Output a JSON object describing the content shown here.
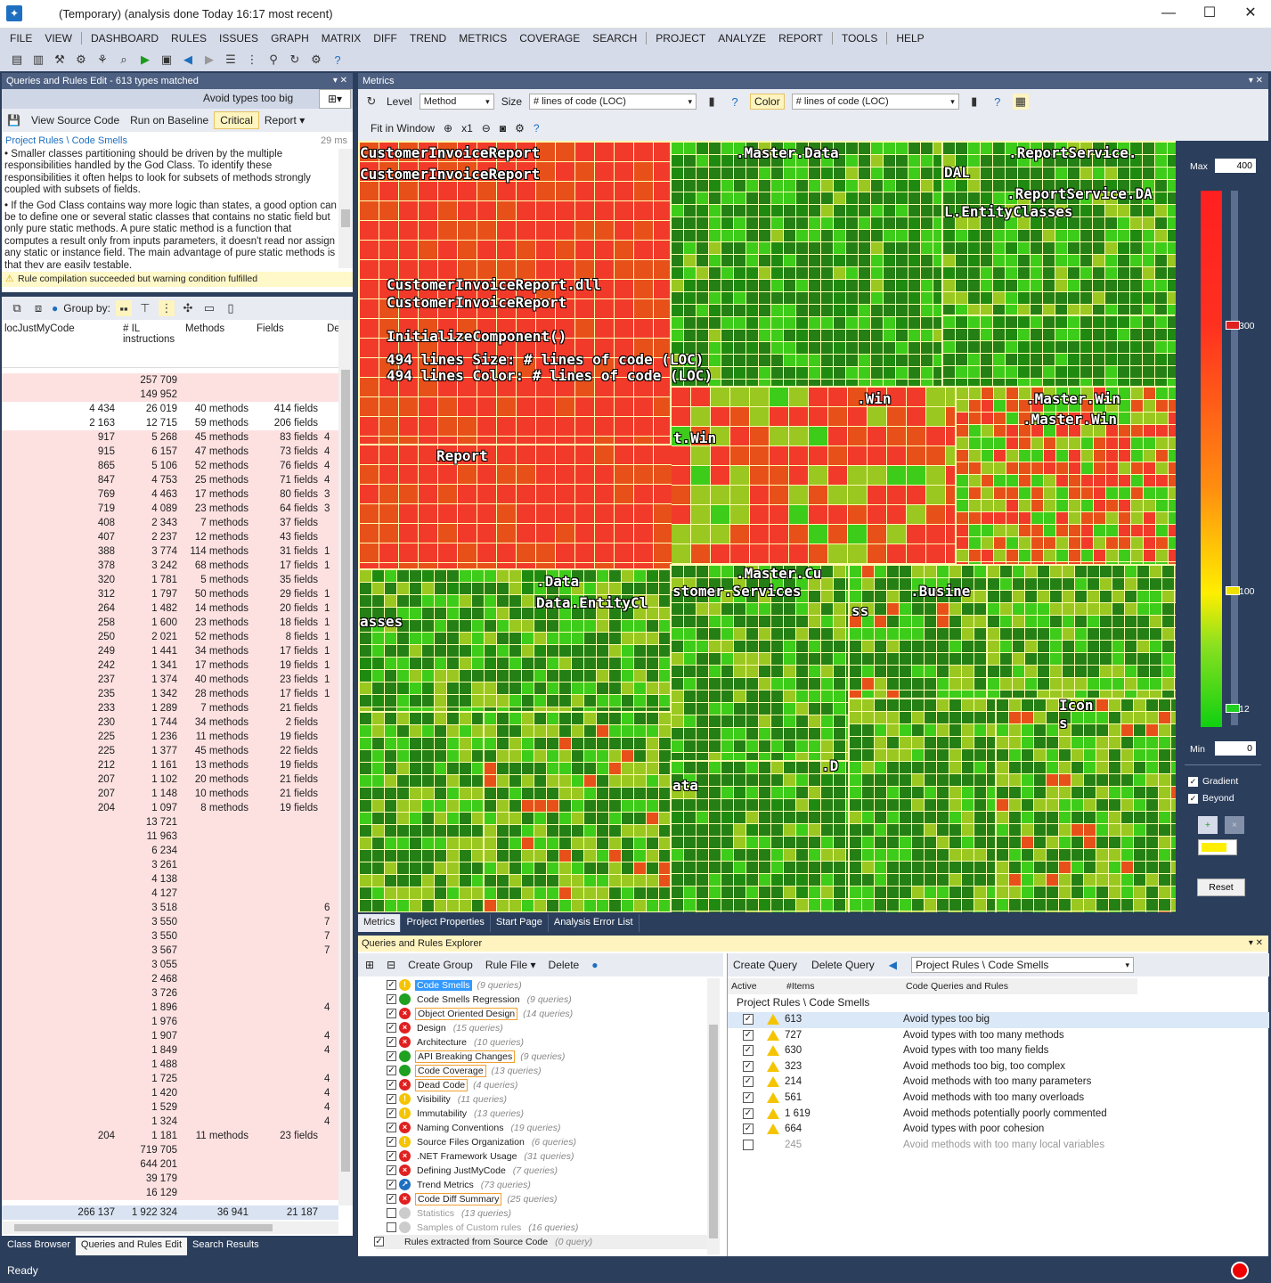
{
  "window": {
    "title": "(Temporary)  (analysis done Today 16:17 most recent)",
    "min": "—",
    "max": "☐",
    "close": "✕"
  },
  "menu": [
    "FILE",
    "VIEW",
    "DASHBOARD",
    "RULES",
    "ISSUES",
    "GRAPH",
    "MATRIX",
    "DIFF",
    "TREND",
    "METRICS",
    "COVERAGE",
    "SEARCH",
    "PROJECT",
    "ANALYZE",
    "REPORT",
    "TOOLS",
    "HELP"
  ],
  "qre": {
    "header": "Queries and Rules Edit  - 613 types matched",
    "rule_title": "Avoid types too big",
    "save": "💾",
    "view_source": "View Source Code",
    "run_baseline": "Run on Baseline",
    "critical": "Critical",
    "report": "Report ▾",
    "path": "Project Rules \\ Code Smells",
    "ms": "29 ms",
    "desc1": "• Smaller classes partitioning should be driven by the multiple responsibilities handled by the God Class. To identify these responsibilities it often helps to look for subsets of methods strongly coupled with subsets of fields.",
    "desc2": "• If the God Class contains way more logic than states, a good option can be to define one or several static classes that contains no static field but only pure static methods. A pure static method is a function that computes a result only from inputs parameters, it doesn't read nor assign any static or instance field. The main advantage of pure static methods is that they are easily testable.",
    "warn": "Rule compilation succeeded but warning condition fulfilled"
  },
  "grid": {
    "group_by": "Group by:",
    "cols": [
      "locJustMyCode",
      "# IL instructions",
      "Methods",
      "Fields",
      "De"
    ],
    "rows": [
      [
        "",
        "257 709",
        "",
        "",
        ""
      ],
      [
        "",
        "149 952",
        "",
        "",
        ""
      ],
      [
        "4 434",
        "26 019",
        "40 methods",
        "414 fields",
        ""
      ],
      [
        "2 163",
        "12 715",
        "59 methods",
        "206 fields",
        ""
      ],
      [
        "917",
        "5 268",
        "45 methods",
        "83 fields",
        "4"
      ],
      [
        "915",
        "6 157",
        "47 methods",
        "73 fields",
        "4"
      ],
      [
        "865",
        "5 106",
        "52 methods",
        "76 fields",
        "4"
      ],
      [
        "847",
        "4 753",
        "25 methods",
        "71 fields",
        "4"
      ],
      [
        "769",
        "4 463",
        "17 methods",
        "80 fields",
        "3"
      ],
      [
        "719",
        "4 089",
        "23 methods",
        "64 fields",
        "3"
      ],
      [
        "408",
        "2 343",
        "7 methods",
        "37 fields",
        ""
      ],
      [
        "407",
        "2 237",
        "12 methods",
        "43 fields",
        ""
      ],
      [
        "388",
        "3 774",
        "114 methods",
        "31 fields",
        "1"
      ],
      [
        "378",
        "3 242",
        "68 methods",
        "17 fields",
        "1"
      ],
      [
        "320",
        "1 781",
        "5 methods",
        "35 fields",
        ""
      ],
      [
        "312",
        "1 797",
        "50 methods",
        "29 fields",
        "1"
      ],
      [
        "264",
        "1 482",
        "14 methods",
        "20 fields",
        "1"
      ],
      [
        "258",
        "1 600",
        "23 methods",
        "18 fields",
        "1"
      ],
      [
        "250",
        "2 021",
        "52 methods",
        "8 fields",
        "1"
      ],
      [
        "249",
        "1 441",
        "34 methods",
        "17 fields",
        "1"
      ],
      [
        "242",
        "1 341",
        "17 methods",
        "19 fields",
        "1"
      ],
      [
        "237",
        "1 374",
        "40 methods",
        "23 fields",
        "1"
      ],
      [
        "235",
        "1 342",
        "28 methods",
        "17 fields",
        "1"
      ],
      [
        "233",
        "1 289",
        "7 methods",
        "21 fields",
        ""
      ],
      [
        "230",
        "1 744",
        "34 methods",
        "2 fields",
        ""
      ],
      [
        "225",
        "1 236",
        "11 methods",
        "19 fields",
        ""
      ],
      [
        "225",
        "1 377",
        "45 methods",
        "22 fields",
        ""
      ],
      [
        "212",
        "1 161",
        "13 methods",
        "19 fields",
        ""
      ],
      [
        "207",
        "1 102",
        "20 methods",
        "21 fields",
        ""
      ],
      [
        "207",
        "1 148",
        "10 methods",
        "21 fields",
        ""
      ],
      [
        "204",
        "1 097",
        "8 methods",
        "19 fields",
        ""
      ],
      [
        "",
        "13 721",
        "",
        "",
        ""
      ],
      [
        "",
        "11 963",
        "",
        "",
        ""
      ],
      [
        "",
        "6 234",
        "",
        "",
        ""
      ],
      [
        "",
        "3 261",
        "",
        "",
        ""
      ],
      [
        "",
        "4 138",
        "",
        "",
        ""
      ],
      [
        "",
        "4 127",
        "",
        "",
        ""
      ],
      [
        "",
        "3 518",
        "",
        "",
        "6"
      ],
      [
        "",
        "3 550",
        "",
        "",
        "7"
      ],
      [
        "",
        "3 550",
        "",
        "",
        "7"
      ],
      [
        "",
        "3 567",
        "",
        "",
        "7"
      ],
      [
        "",
        "3 055",
        "",
        "",
        ""
      ],
      [
        "",
        "2 468",
        "",
        "",
        ""
      ],
      [
        "",
        "3 726",
        "",
        "",
        ""
      ],
      [
        "",
        "1 896",
        "",
        "",
        "4"
      ],
      [
        "",
        "1 976",
        "",
        "",
        ""
      ],
      [
        "",
        "1 907",
        "",
        "",
        "4"
      ],
      [
        "",
        "1 849",
        "",
        "",
        "4"
      ],
      [
        "",
        "1 488",
        "",
        "",
        ""
      ],
      [
        "",
        "1 725",
        "",
        "",
        "4"
      ],
      [
        "",
        "1 420",
        "",
        "",
        "4"
      ],
      [
        "",
        "1 529",
        "",
        "",
        "4"
      ],
      [
        "",
        "1 324",
        "",
        "",
        "4"
      ],
      [
        "204",
        "1 181",
        "11 methods",
        "23 fields",
        ""
      ],
      [
        "",
        "719 705",
        "",
        "",
        ""
      ],
      [
        "",
        "644 201",
        "",
        "",
        ""
      ],
      [
        "",
        "39 179",
        "",
        "",
        ""
      ],
      [
        "",
        "16 129",
        "",
        "",
        ""
      ]
    ],
    "totals": [
      "266 137",
      "1 922 324",
      "36 941",
      "21 187"
    ]
  },
  "bottom_tabs": [
    "Class Browser",
    "Queries and Rules Edit",
    "Search Results"
  ],
  "metrics": {
    "header": "Metrics",
    "level_label": "Level",
    "level": "Method",
    "size_label": "Size",
    "size_metric": "# lines of code (LOC)",
    "color_label": "Color",
    "color_metric": "# lines of code (LOC)",
    "fit": "Fit in Window",
    "zoom": "x1"
  },
  "treemap_labels": {
    "a": "CustomerInvoiceReport",
    "b": "CustomerInvoiceReport",
    "c": "CustomerInvoiceReport.dll",
    "d": "CustomerInvoiceReport",
    "e": "InitializeComponent()",
    "f": "494 lines   Size: # lines of code (LOC)",
    "g": "494 lines   Color: # lines of code (LOC)",
    "h": ".Master.Data",
    "i": ".ReportService.",
    "j": "DAL",
    "k": ".ReportService.DA",
    "l": "L.EntityClasses",
    "m": ".Win",
    "n": ".Master.Win",
    "o": ".Master.Win",
    "p": "t.Win",
    "q": "Report",
    "r": ".Data",
    "s": "Data.EntityCl",
    "t": "asses",
    "u": ".Master.Cu",
    "v": "stomer.Services",
    "w": ".Busine",
    "x": "ss",
    "y": "Icon",
    "z": "s",
    "aa": ".D",
    "ab": "ata"
  },
  "legend": {
    "max_label": "Max",
    "max": "400",
    "min_label": "Min",
    "min": "0",
    "t300": "300",
    "t100": "100",
    "t12": "12",
    "gradient": "Gradient",
    "beyond": "Beyond",
    "reset": "Reset"
  },
  "metrics_tabs": [
    "Metrics",
    "Project Properties",
    "Start Page",
    "Analysis Error List"
  ],
  "explorer": {
    "header": "Queries and Rules Explorer",
    "create_group": "Create Group",
    "rule_file": "Rule File ▾",
    "delete": "Delete",
    "create_query": "Create Query",
    "delete_query": "Delete Query",
    "path": "Project Rules \\ Code Smells",
    "groups": [
      {
        "name": "Code Smells",
        "count": "(9 queries)",
        "icon": "warn",
        "style": "sel"
      },
      {
        "name": "Code Smells Regression",
        "count": "(9 queries)",
        "icon": "ok",
        "style": ""
      },
      {
        "name": "Object Oriented Design",
        "count": "(14 queries)",
        "icon": "err",
        "style": "boxed"
      },
      {
        "name": "Design",
        "count": "(15 queries)",
        "icon": "err",
        "style": ""
      },
      {
        "name": "Architecture",
        "count": "(10 queries)",
        "icon": "err",
        "style": ""
      },
      {
        "name": "API Breaking Changes",
        "count": "(9 queries)",
        "icon": "ok",
        "style": "boxed"
      },
      {
        "name": "Code Coverage",
        "count": "(13 queries)",
        "icon": "ok",
        "style": "boxed"
      },
      {
        "name": "Dead Code",
        "count": "(4 queries)",
        "icon": "err",
        "style": "boxed"
      },
      {
        "name": "Visibility",
        "count": "(11 queries)",
        "icon": "warn",
        "style": ""
      },
      {
        "name": "Immutability",
        "count": "(13 queries)",
        "icon": "warn",
        "style": ""
      },
      {
        "name": "Naming Conventions",
        "count": "(19 queries)",
        "icon": "err",
        "style": ""
      },
      {
        "name": "Source Files Organization",
        "count": "(6 queries)",
        "icon": "warn",
        "style": ""
      },
      {
        "name": ".NET Framework Usage",
        "count": "(31 queries)",
        "icon": "err",
        "style": ""
      },
      {
        "name": "Defining JustMyCode",
        "count": "(7 queries)",
        "icon": "err",
        "style": ""
      },
      {
        "name": "Trend Metrics",
        "count": "(73 queries)",
        "icon": "trend",
        "style": ""
      },
      {
        "name": "Code Diff Summary",
        "count": "(25 queries)",
        "icon": "err",
        "style": "boxed"
      },
      {
        "name": "Statistics",
        "count": "(13 queries)",
        "icon": "none",
        "style": "grey"
      },
      {
        "name": "Samples of Custom rules",
        "count": "(16 queries)",
        "icon": "none",
        "style": "grey"
      },
      {
        "name": "Rules extracted from Source Code",
        "count": "(0 query)",
        "icon": "none",
        "style": "root"
      }
    ],
    "qcols": [
      "Active",
      "#Items",
      "Code Queries and Rules"
    ],
    "qgroup": "Project Rules \\ Code Smells",
    "queries": [
      [
        "613",
        "Avoid types too big",
        "crit"
      ],
      [
        "727",
        "Avoid types with too many methods",
        "warn"
      ],
      [
        "630",
        "Avoid types with too many fields",
        "warn"
      ],
      [
        "323",
        "Avoid methods too big, too complex",
        "crit"
      ],
      [
        "214",
        "Avoid methods with too many parameters",
        "crit"
      ],
      [
        "561",
        "Avoid methods with too many overloads",
        "warn"
      ],
      [
        "1 619",
        "Avoid methods potentially poorly commented",
        "warn"
      ],
      [
        "664",
        "Avoid types with poor cohesion",
        "warn"
      ],
      [
        "245",
        "Avoid methods with too many local variables",
        "off"
      ]
    ]
  },
  "status": "Ready"
}
